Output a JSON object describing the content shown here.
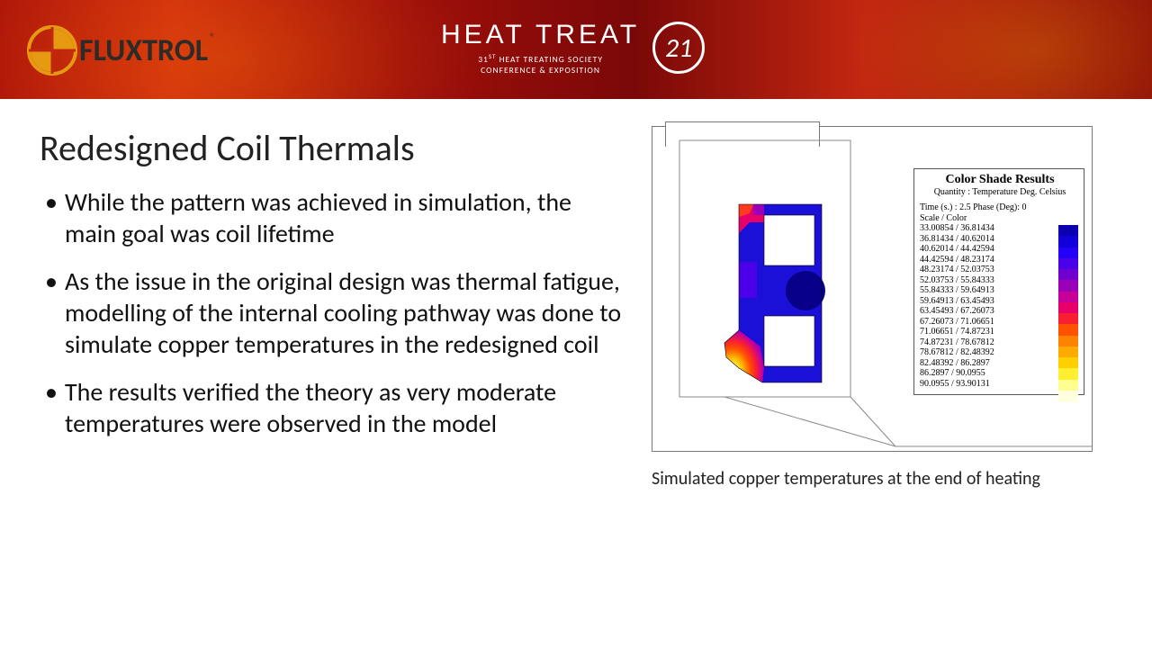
{
  "header": {
    "brand": "FLUXTROL",
    "brand_color": "#2e2a28",
    "logo_ring_outer": "#e59a12",
    "logo_ring_inner": "#c22710",
    "event_title": "HEAT TREAT",
    "event_sub_prefix": "31",
    "event_sub_ord": "ST",
    "event_sub_rest": " HEAT TREATING SOCIETY",
    "event_sub_line2": "CONFERENCE & EXPOSITION",
    "year_badge": "21",
    "bg_gradient": "linear-gradient(90deg,#b0180a,#d12b0e,#a00f0a,#7a0808,#c22710,#8f0d08)"
  },
  "slide": {
    "title": "Redesigned Coil Thermals",
    "bullets": [
      "While the pattern was achieved in simulation, the main goal was coil lifetime",
      "As the issue in the original design was thermal fatigue, modelling of the internal cooling pathway was done to simulate copper temperatures in the redesigned coil",
      "The results verified the theory as very moderate temperatures were observed in the model"
    ],
    "caption": "Simulated copper temperatures at the end of heating"
  },
  "legend": {
    "title": "Color Shade Results",
    "subtitle": "Quantity : Temperature Deg. Celsius",
    "time_line": "Time (s.) : 2.5 Phase (Deg): 0",
    "scale_line": "Scale / Color",
    "ranges": [
      {
        "lo": "33.00854",
        "hi": "36.81434",
        "color": "#0a00b0"
      },
      {
        "lo": "36.81434",
        "hi": "40.62014",
        "color": "#1200d8"
      },
      {
        "lo": "40.62014",
        "hi": "44.42594",
        "color": "#2400f8"
      },
      {
        "lo": "44.42594",
        "hi": "48.23174",
        "color": "#4a00e8"
      },
      {
        "lo": "48.23174",
        "hi": "52.03753",
        "color": "#7000d0"
      },
      {
        "lo": "52.03753",
        "hi": "55.84333",
        "color": "#9a00b8"
      },
      {
        "lo": "55.84333",
        "hi": "59.64913",
        "color": "#c80098"
      },
      {
        "lo": "59.64913",
        "hi": "63.45493",
        "color": "#e8006a"
      },
      {
        "lo": "63.45493",
        "hi": "67.26073",
        "color": "#f82030"
      },
      {
        "lo": "67.26073",
        "hi": "71.06651",
        "color": "#ff5200"
      },
      {
        "lo": "71.06651",
        "hi": "74.87231",
        "color": "#ff8200"
      },
      {
        "lo": "74.87231",
        "hi": "78.67812",
        "color": "#ffaa00"
      },
      {
        "lo": "78.67812",
        "hi": "82.48392",
        "color": "#ffcf00"
      },
      {
        "lo": "82.48392",
        "hi": "86.2897",
        "color": "#ffef30"
      },
      {
        "lo": "86.2897",
        "hi": "90.0955",
        "color": "#ffff90"
      },
      {
        "lo": "90.0955",
        "hi": "93.90131",
        "color": "#ffffe0"
      }
    ]
  },
  "simulation": {
    "outline_color": "#6a6a6a",
    "coil_body_fill": "#1a10d8",
    "hotspots": [
      {
        "desc": "top-left corner",
        "colors": [
          "#ff2a2a",
          "#e8006a",
          "#9a00b8"
        ]
      },
      {
        "desc": "mid dark spot",
        "colors": [
          "#09008a"
        ]
      },
      {
        "desc": "lower-left nose",
        "colors": [
          "#ffff90",
          "#ffcf00",
          "#ff8200",
          "#ff5200",
          "#f82030",
          "#c80098",
          "#7000d0"
        ]
      }
    ]
  }
}
